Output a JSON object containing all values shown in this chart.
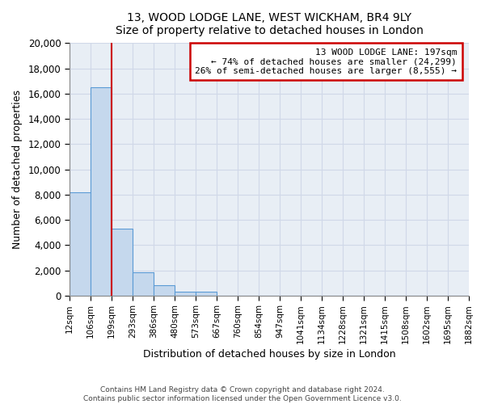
{
  "title": "13, WOOD LODGE LANE, WEST WICKHAM, BR4 9LY",
  "subtitle": "Size of property relative to detached houses in London",
  "xlabel": "Distribution of detached houses by size in London",
  "ylabel": "Number of detached properties",
  "bar_values": [
    8200,
    16500,
    5300,
    1850,
    800,
    300,
    300,
    0,
    0,
    0,
    0,
    0,
    0,
    0,
    0,
    0,
    0,
    0,
    0
  ],
  "bin_labels": [
    "12sqm",
    "106sqm",
    "199sqm",
    "293sqm",
    "386sqm",
    "480sqm",
    "573sqm",
    "667sqm",
    "760sqm",
    "854sqm",
    "947sqm",
    "1041sqm",
    "1134sqm",
    "1228sqm",
    "1321sqm",
    "1415sqm",
    "1508sqm",
    "1602sqm",
    "1695sqm",
    "1882sqm"
  ],
  "bar_color": "#c5d8ed",
  "bar_edge_color": "#5b9bd5",
  "property_line_x_label": "199sqm",
  "property_line_label": "13 WOOD LODGE LANE: 197sqm",
  "annotation_line1": "← 74% of detached houses are smaller (24,299)",
  "annotation_line2": "26% of semi-detached houses are larger (8,555) →",
  "box_facecolor": "#ffffff",
  "box_edge_color": "#cc0000",
  "line_color": "#cc0000",
  "ylim": [
    0,
    20000
  ],
  "yticks": [
    0,
    2000,
    4000,
    6000,
    8000,
    10000,
    12000,
    14000,
    16000,
    18000,
    20000
  ],
  "grid_color": "#d0d8e8",
  "plot_bg_color": "#e8eef5",
  "fig_bg_color": "#ffffff",
  "footer1": "Contains HM Land Registry data © Crown copyright and database right 2024.",
  "footer2": "Contains public sector information licensed under the Open Government Licence v3.0."
}
